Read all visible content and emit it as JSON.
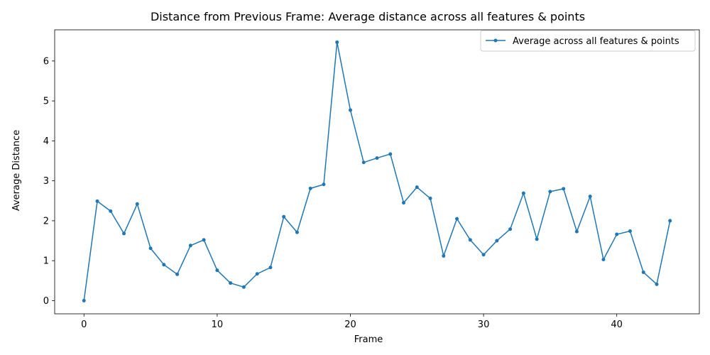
{
  "chart_data": {
    "type": "line",
    "title": "Distance from Previous Frame: Average distance across all features & points",
    "xlabel": "Frame",
    "ylabel": "Average Distance",
    "xlim": [
      -2.2,
      46.2
    ],
    "ylim": [
      -0.33,
      6.78
    ],
    "x_ticks": [
      0,
      10,
      20,
      30,
      40
    ],
    "y_ticks": [
      0,
      1,
      2,
      3,
      4,
      5,
      6
    ],
    "grid": false,
    "legend_position": "top-right",
    "series": [
      {
        "name": "Average across all features & points",
        "color": "#1f77b4",
        "marker": "point",
        "x": [
          0,
          1,
          2,
          3,
          4,
          5,
          6,
          7,
          8,
          9,
          10,
          11,
          12,
          13,
          14,
          15,
          16,
          17,
          18,
          19,
          20,
          21,
          22,
          23,
          24,
          25,
          26,
          27,
          28,
          29,
          30,
          31,
          32,
          33,
          34,
          35,
          36,
          37,
          38,
          39,
          40,
          41,
          42,
          43,
          44
        ],
        "values": [
          0.0,
          2.49,
          2.24,
          1.68,
          2.42,
          1.31,
          0.9,
          0.66,
          1.38,
          1.52,
          0.76,
          0.44,
          0.34,
          0.67,
          0.83,
          2.1,
          1.71,
          2.81,
          2.91,
          6.47,
          4.77,
          3.46,
          3.57,
          3.67,
          2.45,
          2.84,
          2.56,
          1.12,
          2.05,
          1.52,
          1.15,
          1.5,
          1.79,
          2.69,
          1.54,
          2.73,
          2.8,
          1.73,
          2.61,
          1.03,
          1.66,
          1.74,
          0.71,
          0.41,
          2.0
        ]
      }
    ]
  }
}
